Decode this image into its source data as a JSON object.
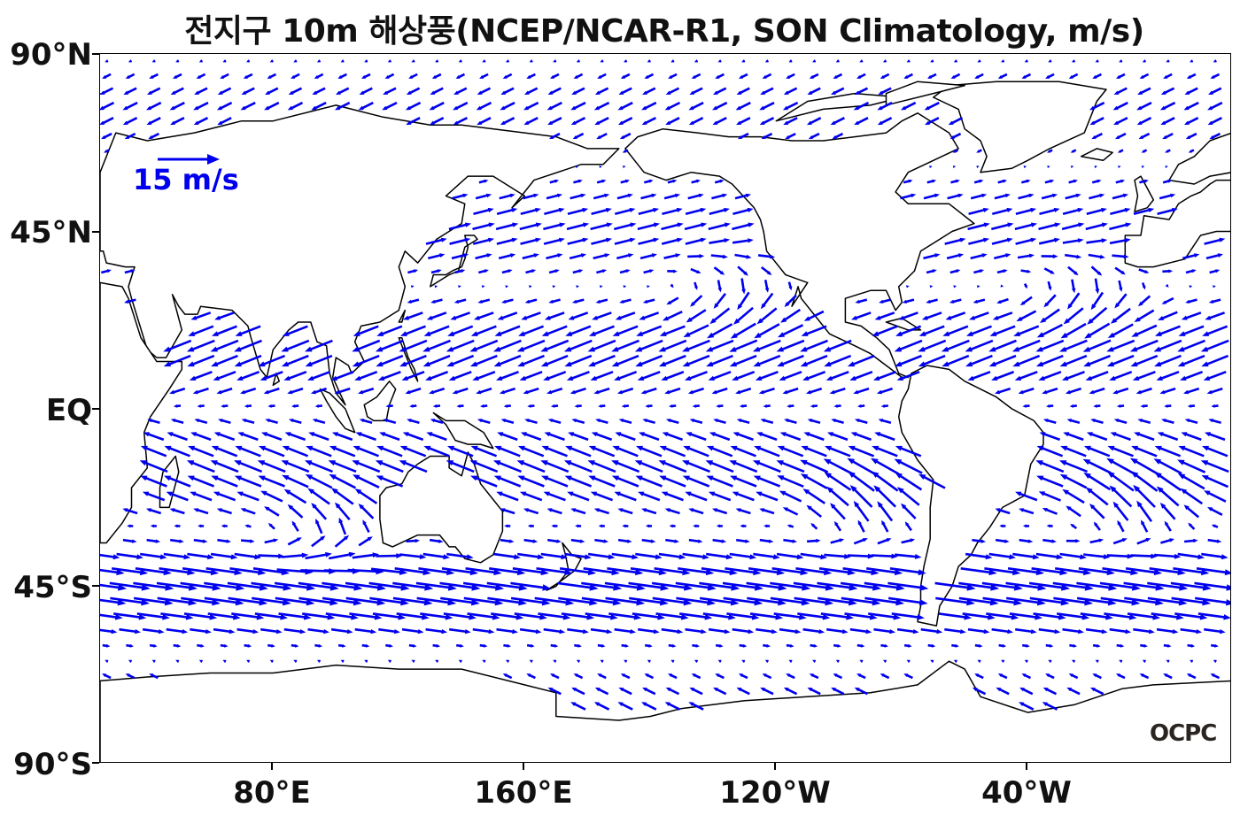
{
  "title": "전지구 10m 해상풍(NCEP/NCAR-R1, SON Climatology, m/s)",
  "colors": {
    "vector": "#0000ee",
    "coast": "#000000",
    "text": "#111111"
  },
  "axes": {
    "lat_labels": [
      "90°N",
      "45°N",
      "EQ",
      "45°S",
      "90°S"
    ],
    "lon_labels": [
      "80°E",
      "160°E",
      "120°W",
      "40°W"
    ]
  },
  "reference": {
    "label": "15 m/s",
    "speed": 15
  },
  "logo": {
    "text": "OCPC"
  },
  "chart_data": {
    "type": "vector-field",
    "title": "전지구 10m 해상풍(NCEP/NCAR-R1, SON Climatology, m/s)",
    "lon_range": [
      25,
      385
    ],
    "lat_range": [
      -90,
      90
    ],
    "x_ticks": [
      "80°E",
      "160°E",
      "120°W",
      "40°W"
    ],
    "y_ticks": [
      "90°N",
      "45°N",
      "EQ",
      "45°S",
      "90°S"
    ],
    "reference_vector": {
      "speed": 15,
      "unit": "m/s",
      "label": "15 m/s"
    },
    "grid": false
  }
}
